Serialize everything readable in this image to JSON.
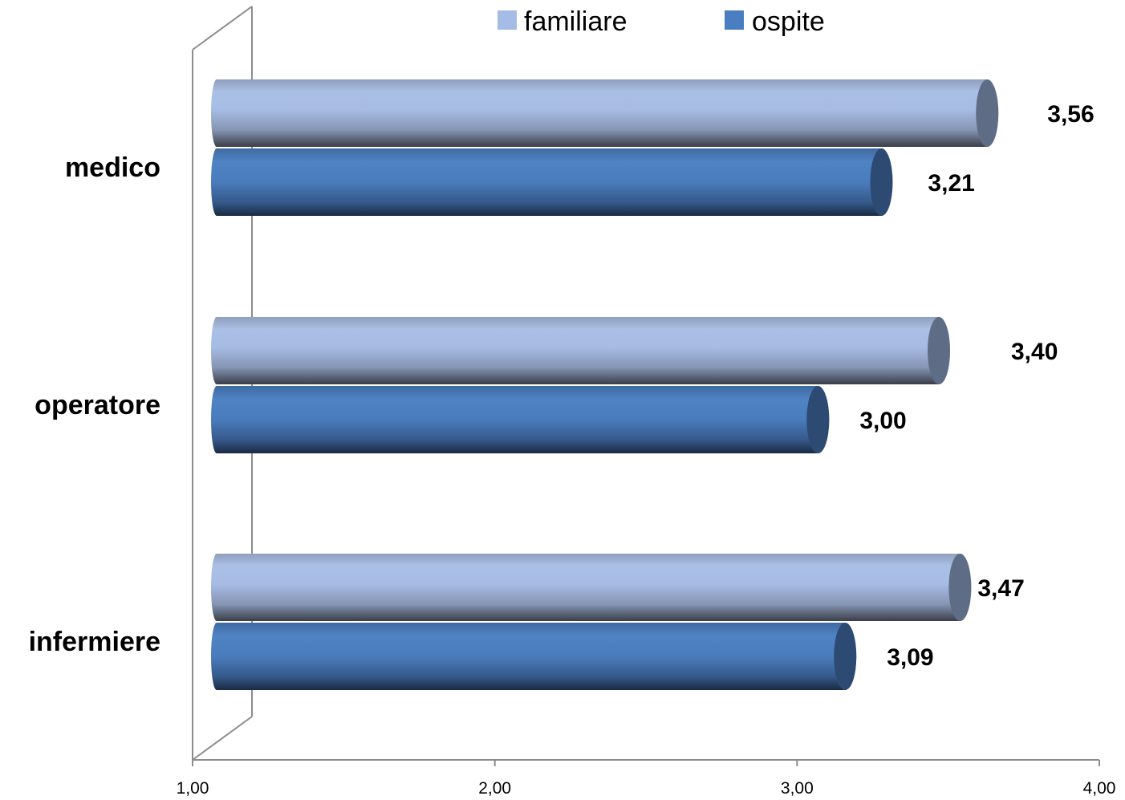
{
  "chart_data": {
    "type": "bar",
    "orientation": "horizontal",
    "style": "3d-cylinder",
    "categories": [
      "medico",
      "operatore",
      "infermiere"
    ],
    "series": [
      {
        "name": "familiare",
        "values": [
          3.56,
          3.4,
          3.47
        ],
        "labels": [
          "3,56",
          "3,40",
          "3,47"
        ],
        "color": "#a5bde6"
      },
      {
        "name": "ospite",
        "values": [
          3.21,
          3.0,
          3.09
        ],
        "labels": [
          "3,21",
          "3,00",
          "3,09"
        ],
        "color": "#4a7ec0"
      }
    ],
    "xlim": [
      1.0,
      4.0
    ],
    "x_ticks": [
      1,
      2,
      3,
      4
    ],
    "x_tick_labels": [
      "1,00",
      "2,00",
      "3,00",
      "4,00"
    ],
    "grid": false,
    "legend_position": "top"
  }
}
